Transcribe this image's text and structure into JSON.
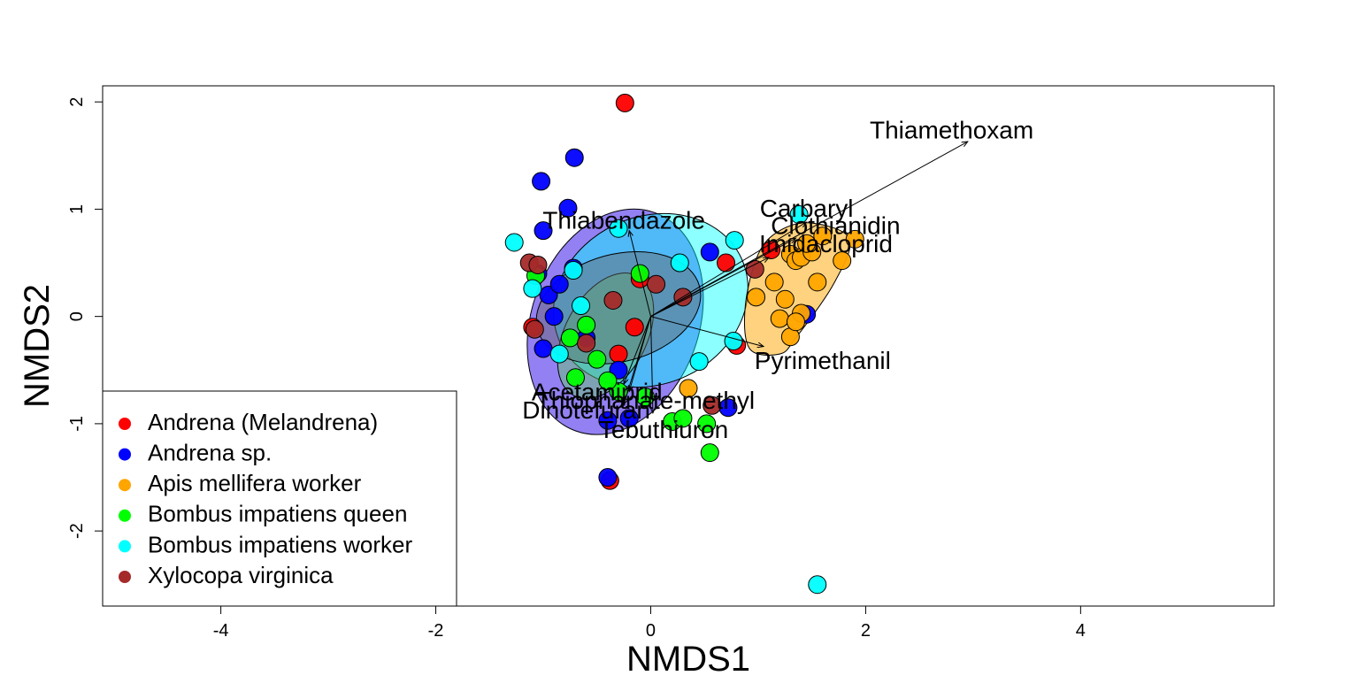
{
  "chart_data": {
    "type": "scatter",
    "xlabel": "NMDS1",
    "ylabel": "NMDS2",
    "xlim": [
      -5.1,
      5.8
    ],
    "ylim": [
      -2.7,
      2.15
    ],
    "xticks": [
      -4,
      -2,
      0,
      2,
      4
    ],
    "yticks": [
      -2,
      -1,
      0,
      1,
      2
    ],
    "legend_position": "bottom-left",
    "series": [
      {
        "name": "Andrena (Melandrena)",
        "color": "#ff0000",
        "x": [
          -0.24,
          -1.1,
          0.7,
          1.12,
          0.8,
          -0.38,
          -0.3,
          -0.1,
          -0.15
        ],
        "y": [
          1.99,
          -0.1,
          0.5,
          0.62,
          -0.27,
          -1.53,
          -0.35,
          0.35,
          -0.1
        ]
      },
      {
        "name": "Andrena sp.",
        "color": "#0000ff",
        "x": [
          -0.71,
          -1.02,
          -1.0,
          -0.77,
          -1.05,
          -0.95,
          -0.9,
          -0.72,
          -0.4,
          -0.2,
          0.72,
          1.45,
          -0.4,
          -0.3,
          0.55,
          -0.6,
          -1.0,
          -0.85
        ],
        "y": [
          1.48,
          1.26,
          0.8,
          1.01,
          0.4,
          0.2,
          0.0,
          0.45,
          -0.97,
          -0.95,
          -0.85,
          0.02,
          -1.5,
          -0.5,
          0.6,
          -0.2,
          -0.3,
          0.3
        ]
      },
      {
        "name": "Apis mellifera worker",
        "color": "#ffa500",
        "x": [
          1.3,
          1.35,
          1.4,
          1.5,
          1.6,
          1.78,
          1.9,
          1.15,
          1.25,
          1.4,
          1.55,
          1.2,
          1.3,
          0.98,
          1.35,
          0.35,
          1.45
        ],
        "y": [
          0.58,
          0.52,
          0.55,
          0.6,
          0.75,
          0.52,
          0.72,
          0.32,
          0.16,
          0.03,
          0.32,
          -0.02,
          -0.19,
          0.18,
          -0.05,
          -0.67,
          0.68
        ]
      },
      {
        "name": "Bombus impatiens queen",
        "color": "#00ff00",
        "x": [
          0.55,
          0.2,
          0.3,
          0.52,
          -0.7,
          -0.75,
          -0.6,
          -0.5,
          -0.3,
          -0.1,
          -0.05,
          -1.07,
          -0.4
        ],
        "y": [
          -1.27,
          -0.98,
          -0.95,
          -1.0,
          -0.57,
          -0.2,
          -0.08,
          -0.4,
          -0.7,
          0.4,
          -0.75,
          0.38,
          -0.6
        ]
      },
      {
        "name": "Bombus impatiens worker",
        "color": "#00ffff",
        "x": [
          1.55,
          -1.27,
          -0.3,
          -0.72,
          1.38,
          0.78,
          0.27,
          -1.1,
          -0.85,
          0.77,
          0.45,
          -0.65
        ],
        "y": [
          -2.5,
          0.69,
          0.82,
          0.43,
          0.95,
          0.71,
          0.5,
          0.26,
          -0.35,
          -0.23,
          -0.42,
          0.1
        ]
      },
      {
        "name": "Xylocopa virginica",
        "color": "#a52a2a",
        "x": [
          -1.13,
          -1.08,
          -1.05,
          0.97,
          0.57,
          0.3,
          0.05,
          -0.6,
          -0.35
        ],
        "y": [
          0.5,
          -0.12,
          0.48,
          0.44,
          -0.83,
          0.18,
          0.3,
          -0.25,
          0.15
        ]
      }
    ],
    "ellipses": [
      {
        "color": "#4b2bea",
        "alpha": 0.6,
        "cx": -0.33,
        "cy": -0.05,
        "rx": 1.08,
        "ry": 0.78,
        "angle_deg": -70
      },
      {
        "color": "#00ffff",
        "alpha": 0.45,
        "cx": 0.0,
        "cy": 0.15,
        "rx": 0.93,
        "ry": 0.78,
        "angle_deg": -25
      },
      {
        "color": "#66cc66",
        "alpha": 0.45,
        "cx": -0.42,
        "cy": -0.18,
        "rx": 0.63,
        "ry": 0.38,
        "angle_deg": -62
      },
      {
        "color": "#666666",
        "alpha": 0.45,
        "cx": -0.3,
        "cy": 0.08,
        "rx": 0.78,
        "ry": 0.5,
        "angle_deg": -15
      }
    ],
    "apis_hull": {
      "color": "#ffa500",
      "alpha": 0.5,
      "x": [
        1.0,
        1.2,
        1.5,
        1.85,
        1.7,
        1.35,
        1.2,
        0.92,
        0.88
      ],
      "y": [
        0.58,
        0.8,
        0.87,
        0.72,
        0.3,
        -0.2,
        -0.35,
        -0.3,
        0.1
      ]
    },
    "vectors": [
      {
        "label": "Thiamethoxam",
        "x": 2.95,
        "y": 1.63,
        "label_x": 2.8,
        "label_y": 1.72
      },
      {
        "label": "Carbaryl",
        "x": 1.45,
        "y": 0.88,
        "label_x": 1.45,
        "label_y": 0.99
      },
      {
        "label": "Clothianidin",
        "x": 1.35,
        "y": 0.73,
        "label_x": 1.72,
        "label_y": 0.83
      },
      {
        "label": "Imidacloprid",
        "x": 1.1,
        "y": 0.55,
        "label_x": 1.63,
        "label_y": 0.66
      },
      {
        "label": "Thiabendazole",
        "x": -0.2,
        "y": 0.8,
        "label_x": -0.25,
        "label_y": 0.88
      },
      {
        "label": "Pyrimethanil",
        "x": 1.05,
        "y": -0.28,
        "label_x": 1.6,
        "label_y": -0.43
      },
      {
        "label": "Acetamiprid",
        "x": -0.25,
        "y": -0.63,
        "label_x": -0.5,
        "label_y": -0.72
      },
      {
        "label": "Thiophanate-methyl",
        "x": -0.2,
        "y": -0.7,
        "label_x": -0.05,
        "label_y": -0.8
      },
      {
        "label": "Dinotefuran",
        "x": -0.25,
        "y": -0.82,
        "label_x": -0.6,
        "label_y": -0.89
      },
      {
        "label": "Tebuthiuron",
        "x": 0.02,
        "y": -0.9,
        "label_x": 0.12,
        "label_y": -1.07
      }
    ]
  }
}
